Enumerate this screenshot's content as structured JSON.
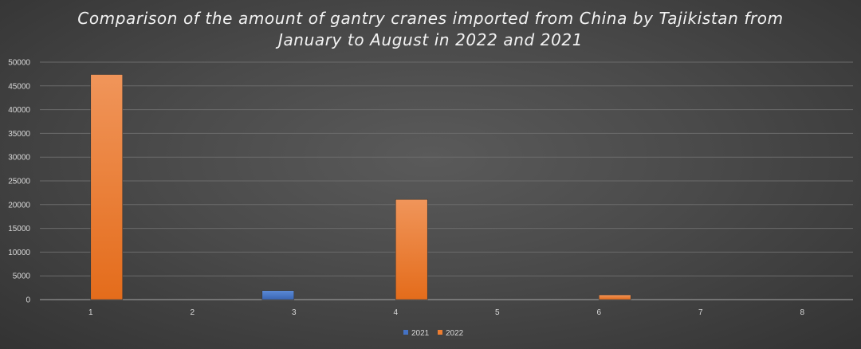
{
  "chart_data": {
    "type": "bar",
    "title_lines": [
      "Comparison of the amount of gantry cranes imported from China by Tajikistan from",
      "January to August in 2022 and 2021"
    ],
    "categories": [
      "1",
      "2",
      "3",
      "4",
      "5",
      "6",
      "7",
      "8"
    ],
    "series": [
      {
        "name": "2021",
        "values": [
          0,
          0,
          1900,
          0,
          0,
          0,
          0,
          0
        ],
        "color": "#4472c4"
      },
      {
        "name": "2022",
        "values": [
          47400,
          0,
          0,
          21100,
          0,
          1000,
          0,
          0
        ],
        "color": "#ed7d31"
      }
    ],
    "yticks": [
      "0",
      "5000",
      "10000",
      "15000",
      "20000",
      "25000",
      "30000",
      "35000",
      "40000",
      "45000",
      "50000"
    ],
    "ylim": [
      0,
      50000
    ],
    "grid": true,
    "legend_position": "bottom"
  }
}
